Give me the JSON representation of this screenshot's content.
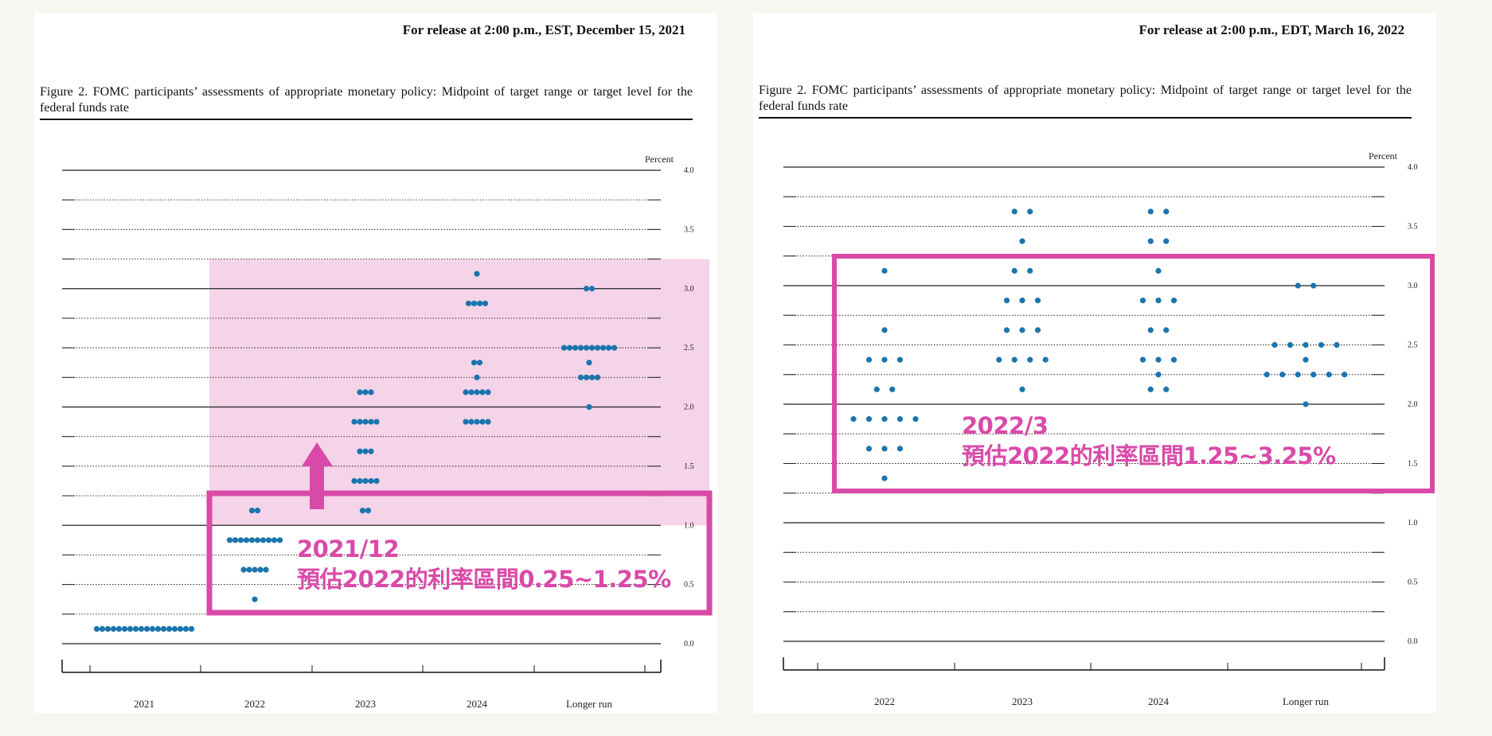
{
  "colors": {
    "dot": "#1b75ad",
    "accent": "#d94aa8",
    "shade": "#f5d3e8"
  },
  "percent_label": "Percent",
  "y_ticks": [
    "4.0",
    "3.5",
    "3.0",
    "2.5",
    "2.0",
    "1.5",
    "1.0",
    "0.5",
    "0.0"
  ],
  "left": {
    "release": "For release at 2:00 p.m., EST, December 15, 2021",
    "figure_title": "Figure 2.  FOMC participants’ assessments of appropriate monetary policy:  Midpoint of target range or target level for the federal funds rate",
    "annotation_line1": "2021/12",
    "annotation_line2": "預估2022的利率區間0.25~1.25%"
  },
  "right": {
    "release": "For release at 2:00 p.m., EDT, March 16, 2022",
    "figure_title": "Figure 2.  FOMC participants’ assessments of appropriate monetary policy:  Midpoint of target range or target level for the federal funds rate",
    "annotation_line1": "2022/3",
    "annotation_line2": "預估2022的利率區間1.25~3.25%"
  },
  "chart_data": [
    {
      "type": "scatter",
      "title": "Figure 2.  FOMC participants’ assessments of appropriate monetary policy:  Midpoint of target range or target level for the federal funds rate",
      "ylabel": "Percent",
      "ylim": [
        0,
        4
      ],
      "categories": [
        "2021",
        "2022",
        "2023",
        "2024",
        "Longer run"
      ],
      "dots": [
        {
          "x": "2021",
          "y": 0.125,
          "count": 18
        },
        {
          "x": "2022",
          "y": 0.375,
          "count": 1
        },
        {
          "x": "2022",
          "y": 0.625,
          "count": 5
        },
        {
          "x": "2022",
          "y": 0.875,
          "count": 10
        },
        {
          "x": "2022",
          "y": 1.125,
          "count": 2
        },
        {
          "x": "2023",
          "y": 1.125,
          "count": 2
        },
        {
          "x": "2023",
          "y": 1.375,
          "count": 5
        },
        {
          "x": "2023",
          "y": 1.625,
          "count": 3
        },
        {
          "x": "2023",
          "y": 1.875,
          "count": 5
        },
        {
          "x": "2023",
          "y": 2.125,
          "count": 3
        },
        {
          "x": "2024",
          "y": 1.875,
          "count": 5
        },
        {
          "x": "2024",
          "y": 2.125,
          "count": 5
        },
        {
          "x": "2024",
          "y": 2.25,
          "count": 1
        },
        {
          "x": "2024",
          "y": 2.375,
          "count": 2
        },
        {
          "x": "2024",
          "y": 2.875,
          "count": 4
        },
        {
          "x": "2024",
          "y": 3.125,
          "count": 1
        },
        {
          "x": "Longer run",
          "y": 2.0,
          "count": 1
        },
        {
          "x": "Longer run",
          "y": 2.25,
          "count": 4
        },
        {
          "x": "Longer run",
          "y": 2.375,
          "count": 1
        },
        {
          "x": "Longer run",
          "y": 2.5,
          "count": 10
        },
        {
          "x": "Longer run",
          "y": 3.0,
          "count": 2
        }
      ]
    },
    {
      "type": "scatter",
      "title": "Figure 2.  FOMC participants’ assessments of appropriate monetary policy:  Midpoint of target range or target level for the federal funds rate",
      "ylabel": "Percent",
      "ylim": [
        0,
        4
      ],
      "categories": [
        "2022",
        "2023",
        "2024",
        "Longer run"
      ],
      "dots": [
        {
          "x": "2022",
          "y": 1.375,
          "count": 1
        },
        {
          "x": "2022",
          "y": 1.625,
          "count": 3
        },
        {
          "x": "2022",
          "y": 1.875,
          "count": 5
        },
        {
          "x": "2022",
          "y": 2.125,
          "count": 2
        },
        {
          "x": "2022",
          "y": 2.375,
          "count": 3
        },
        {
          "x": "2022",
          "y": 2.625,
          "count": 1
        },
        {
          "x": "2022",
          "y": 3.125,
          "count": 1
        },
        {
          "x": "2023",
          "y": 2.125,
          "count": 1
        },
        {
          "x": "2023",
          "y": 2.375,
          "count": 4
        },
        {
          "x": "2023",
          "y": 2.625,
          "count": 3
        },
        {
          "x": "2023",
          "y": 2.875,
          "count": 3
        },
        {
          "x": "2023",
          "y": 3.125,
          "count": 2
        },
        {
          "x": "2023",
          "y": 3.375,
          "count": 1
        },
        {
          "x": "2023",
          "y": 3.625,
          "count": 2
        },
        {
          "x": "2024",
          "y": 2.125,
          "count": 2
        },
        {
          "x": "2024",
          "y": 2.25,
          "count": 1
        },
        {
          "x": "2024",
          "y": 2.375,
          "count": 3
        },
        {
          "x": "2024",
          "y": 2.625,
          "count": 2
        },
        {
          "x": "2024",
          "y": 2.875,
          "count": 3
        },
        {
          "x": "2024",
          "y": 3.125,
          "count": 1
        },
        {
          "x": "2024",
          "y": 3.375,
          "count": 2
        },
        {
          "x": "2024",
          "y": 3.625,
          "count": 2
        },
        {
          "x": "Longer run",
          "y": 2.0,
          "count": 1
        },
        {
          "x": "Longer run",
          "y": 2.25,
          "count": 6
        },
        {
          "x": "Longer run",
          "y": 2.375,
          "count": 1
        },
        {
          "x": "Longer run",
          "y": 2.5,
          "count": 5
        },
        {
          "x": "Longer run",
          "y": 3.0,
          "count": 2
        }
      ]
    }
  ]
}
